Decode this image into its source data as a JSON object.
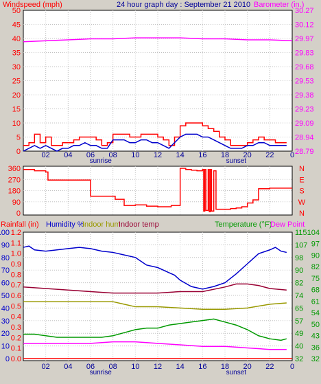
{
  "header": {
    "title": "24 hour graph day : September 21 2010",
    "left_label": "Windspeed (mph)",
    "right_label": "Barometer (in.)"
  },
  "colors": {
    "background": "#d4d0c8",
    "plot": "#ffffff",
    "grid": "#c0c0c0",
    "wind": "#ff0000",
    "wind_avg": "#0000cc",
    "barometer": "#ff00ff",
    "direction": "#ff0000",
    "rainfall": "#ff0000",
    "humidity": "#0000cc",
    "indoor_hum": "#999900",
    "indoor_temp": "#990033",
    "temperature": "#009900",
    "dew_point": "#ff00ff",
    "title": "#000099"
  },
  "chart_data": [
    {
      "type": "line",
      "xticks": [
        "02",
        "04",
        "06",
        "08",
        "10",
        "12",
        "14",
        "16",
        "18",
        "20",
        "22",
        "0"
      ],
      "sun_labels": [
        "sunrise",
        "sunset"
      ],
      "sun_times": [
        6.9,
        19.0
      ],
      "x_range": [
        0,
        24
      ],
      "ylabel": "Windspeed (mph)",
      "ylim": [
        0,
        50
      ],
      "yticks": [
        "0",
        "5",
        "10",
        "15",
        "20",
        "25",
        "30",
        "35",
        "40",
        "45",
        "50"
      ],
      "ylabel_right": "Barometer (in.)",
      "ylim_right": [
        28.79,
        30.27
      ],
      "yticks_right": [
        "28.79",
        "28.94",
        "29.09",
        "29.23",
        "29.38",
        "29.53",
        "29.68",
        "29.83",
        "29.97",
        "30.12",
        "30.27"
      ],
      "series": [
        {
          "name": "Windspeed (mph)",
          "color": "#ff0000",
          "x": [
            0,
            0.5,
            1,
            1.5,
            2,
            2.5,
            3,
            3.5,
            4,
            4.5,
            5,
            5.5,
            6,
            6.5,
            7,
            7.5,
            8,
            8.5,
            9,
            9.5,
            10,
            10.5,
            11,
            11.5,
            12,
            12.5,
            13,
            13.5,
            14,
            14.5,
            15,
            15.5,
            16,
            16.5,
            17,
            17.5,
            18,
            18.5,
            19,
            19.5,
            20,
            20.5,
            21,
            21.5,
            22,
            22.5,
            23,
            23.5
          ],
          "values": [
            2,
            3,
            6,
            3,
            5,
            2,
            2,
            3,
            3,
            4,
            5,
            5,
            5,
            4,
            2,
            3,
            6,
            6,
            6,
            5,
            5,
            6,
            6,
            6,
            5,
            4,
            2,
            5,
            9,
            10,
            10,
            10,
            9,
            8,
            7,
            5,
            4,
            2,
            2,
            2,
            3,
            4,
            5,
            4,
            4,
            3,
            3,
            3
          ]
        },
        {
          "name": "Average wind",
          "color": "#0000cc",
          "x": [
            0,
            0.5,
            1,
            1.5,
            2,
            2.5,
            3,
            3.5,
            4,
            4.5,
            5,
            5.5,
            6,
            6.5,
            7,
            7.5,
            8,
            8.5,
            9,
            9.5,
            10,
            10.5,
            11,
            11.5,
            12,
            12.5,
            13,
            13.5,
            14,
            14.5,
            15,
            15.5,
            16,
            16.5,
            17,
            17.5,
            18,
            18.5,
            19,
            19.5,
            20,
            20.5,
            21,
            21.5,
            22,
            22.5,
            23,
            23.5
          ],
          "values": [
            0,
            1,
            2,
            1,
            2,
            1,
            0,
            1,
            1,
            2,
            2,
            3,
            2,
            2,
            1,
            1,
            4,
            4,
            4,
            3,
            3,
            4,
            4,
            3,
            3,
            2,
            1,
            3,
            5,
            6,
            6,
            6,
            5,
            5,
            4,
            3,
            2,
            1,
            1,
            1,
            2,
            2,
            3,
            3,
            2,
            2,
            2,
            2
          ]
        },
        {
          "name": "Barometer (in.)",
          "color": "#ff00ff",
          "x": [
            0,
            2,
            4,
            6,
            8,
            10,
            12,
            14,
            16,
            18,
            20,
            22,
            24
          ],
          "values": [
            29.94,
            29.95,
            29.96,
            29.97,
            29.97,
            29.98,
            29.98,
            29.98,
            29.97,
            29.97,
            29.96,
            29.96,
            29.95
          ]
        }
      ]
    },
    {
      "type": "line",
      "yticks": [
        "0",
        "90",
        "180",
        "270",
        "360"
      ],
      "ylim": [
        0,
        360
      ],
      "compass": [
        "N",
        "W",
        "S",
        "E",
        "N"
      ],
      "series": [
        {
          "name": "Wind direction",
          "color": "#ff0000",
          "x": [
            0,
            1,
            2,
            2.2,
            4,
            5,
            5.4,
            6,
            7,
            7.8,
            8.2,
            9,
            10,
            11,
            12,
            12.2,
            13.2,
            13.8,
            14,
            14.5,
            15,
            15.5,
            16,
            16.1,
            16.2,
            16.3,
            16.5,
            16.6,
            16.7,
            16.8,
            17,
            17.2,
            17.3,
            17.5,
            18,
            18.5,
            19,
            19.5,
            20,
            20.5,
            21,
            22,
            23,
            24
          ],
          "values": [
            350,
            340,
            330,
            265,
            265,
            265,
            265,
            135,
            135,
            135,
            110,
            60,
            65,
            55,
            50,
            50,
            60,
            60,
            360,
            350,
            345,
            340,
            350,
            15,
            350,
            20,
            350,
            10,
            350,
            15,
            340,
            30,
            30,
            30,
            30,
            35,
            40,
            50,
            80,
            105,
            195,
            200,
            200,
            200
          ]
        }
      ]
    },
    {
      "type": "line",
      "labels": {
        "rainfall": "Rainfall (in)",
        "humidity": "Humidity %",
        "indoor_hum": "Indoor hum",
        "indoor_temp": "Indoor temp",
        "temperature": "Temperature (°F)",
        "dew_point": "Dew Point"
      },
      "y1_ticks": [
        "0",
        "10",
        "20",
        "30",
        "40",
        "50",
        "60",
        "70",
        "80",
        "90",
        "100"
      ],
      "y1_range": [
        0,
        100
      ],
      "y2_ticks": [
        "0.0",
        "0.1",
        "0.2",
        "0.3",
        "0.4",
        "0.5",
        "0.6",
        "0.7",
        "0.8",
        "0.9",
        "1.0",
        "1.1",
        "1.2"
      ],
      "y2_range": [
        0,
        1.2
      ],
      "y3_ticks": [
        "32",
        "40",
        "49",
        "57",
        "65",
        "74",
        "82",
        "90",
        "98",
        "107",
        "115"
      ],
      "y3_range": [
        32,
        115
      ],
      "y4_ticks": [
        "32",
        "36",
        "43",
        "50",
        "54",
        "61",
        "68",
        "75",
        "82",
        "90",
        "97",
        "104"
      ],
      "series": [
        {
          "name": "Humidity %",
          "axis": "pct",
          "color": "#0000cc",
          "x": [
            0,
            0.5,
            1,
            2,
            3,
            4,
            5,
            6,
            7,
            8,
            9,
            10,
            11,
            12,
            13,
            13.5,
            14,
            15,
            16,
            17,
            18,
            19,
            20,
            21,
            22,
            22.5,
            23,
            23.5
          ],
          "values": [
            88,
            89,
            86,
            85,
            86,
            87,
            88,
            87,
            85,
            84,
            82,
            80,
            74,
            72,
            68,
            66,
            62,
            57,
            55,
            57,
            60,
            67,
            75,
            83,
            86,
            88,
            85,
            84
          ]
        },
        {
          "name": "Indoor hum",
          "axis": "pct",
          "color": "#999900",
          "x": [
            0,
            2,
            4,
            6,
            8,
            9,
            10,
            12,
            14,
            16,
            18,
            20,
            22,
            23.5
          ],
          "values": [
            45,
            45,
            45,
            45,
            45,
            43,
            41,
            41,
            40,
            39,
            39,
            40,
            43,
            44
          ]
        },
        {
          "name": "Indoor temp",
          "axis": "temp",
          "color": "#990033",
          "x": [
            0,
            2,
            4,
            6,
            8,
            10,
            12,
            14,
            16,
            18,
            19,
            20,
            21,
            22,
            23.5
          ],
          "values": [
            79,
            78,
            77,
            76,
            75,
            75,
            75,
            76,
            76,
            79,
            81,
            81,
            80,
            78,
            77
          ]
        },
        {
          "name": "Temperature (°F)",
          "axis": "temp",
          "color": "#009900",
          "x": [
            0,
            1,
            2,
            3,
            4,
            5,
            6,
            7,
            8,
            9,
            10,
            11,
            12,
            13,
            14,
            15,
            16,
            17,
            18,
            19,
            20,
            21,
            22,
            23,
            23.5
          ],
          "values": [
            48,
            48,
            47,
            46,
            46,
            46,
            46,
            46,
            47,
            49,
            51,
            52,
            52,
            54,
            55,
            56,
            57,
            58,
            56,
            54,
            51,
            47,
            45,
            44,
            45
          ]
        },
        {
          "name": "Dew Point",
          "axis": "temp",
          "color": "#ff00ff",
          "x": [
            0,
            2,
            4,
            6,
            8,
            10,
            12,
            14,
            16,
            18,
            20,
            22,
            23.5
          ],
          "values": [
            42,
            42,
            42,
            42,
            43,
            43,
            42,
            41,
            40,
            40,
            39,
            38,
            38
          ]
        },
        {
          "name": "Rainfall (in)",
          "axis": "rain",
          "color": "#ff0000",
          "x": [
            0,
            24
          ],
          "values": [
            0.0,
            0.0
          ]
        }
      ]
    }
  ]
}
